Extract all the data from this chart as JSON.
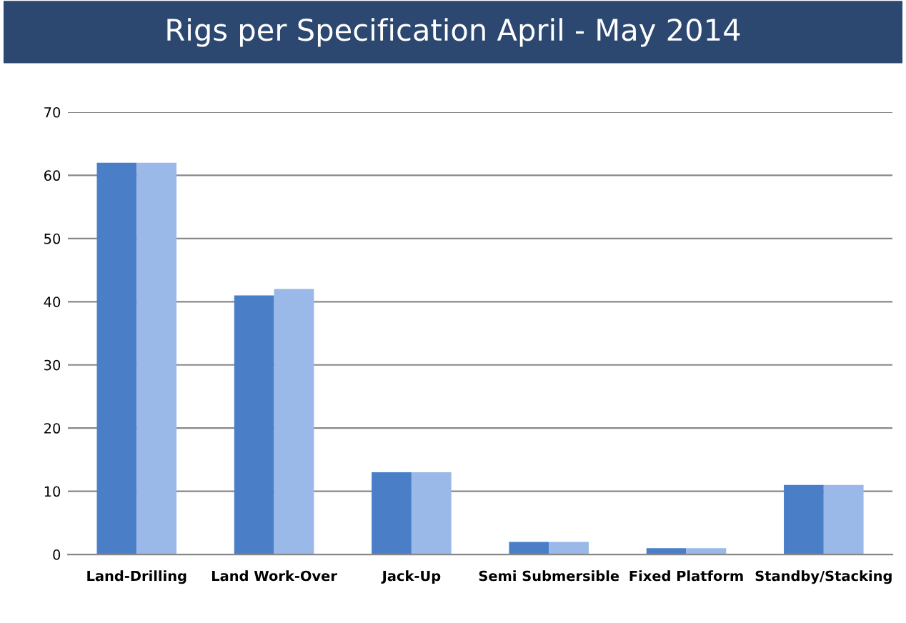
{
  "chart_data": {
    "type": "bar",
    "title": "Rigs per Specification April - May 2014",
    "categories": [
      "Land-Drilling",
      "Land Work-Over",
      "Jack-Up",
      "Semi Submersible",
      "Fixed Platform",
      "Standby/Stacking"
    ],
    "series": [
      {
        "color": "#4a7fc8",
        "values": [
          62,
          41,
          13,
          2,
          1,
          11
        ]
      },
      {
        "color": "#9ab8e8",
        "values": [
          62,
          42,
          13,
          2,
          1,
          11
        ]
      }
    ],
    "ylim": [
      0,
      70
    ],
    "yticks": [
      0,
      10,
      20,
      30,
      40,
      50,
      60,
      70
    ],
    "grid": "y"
  }
}
